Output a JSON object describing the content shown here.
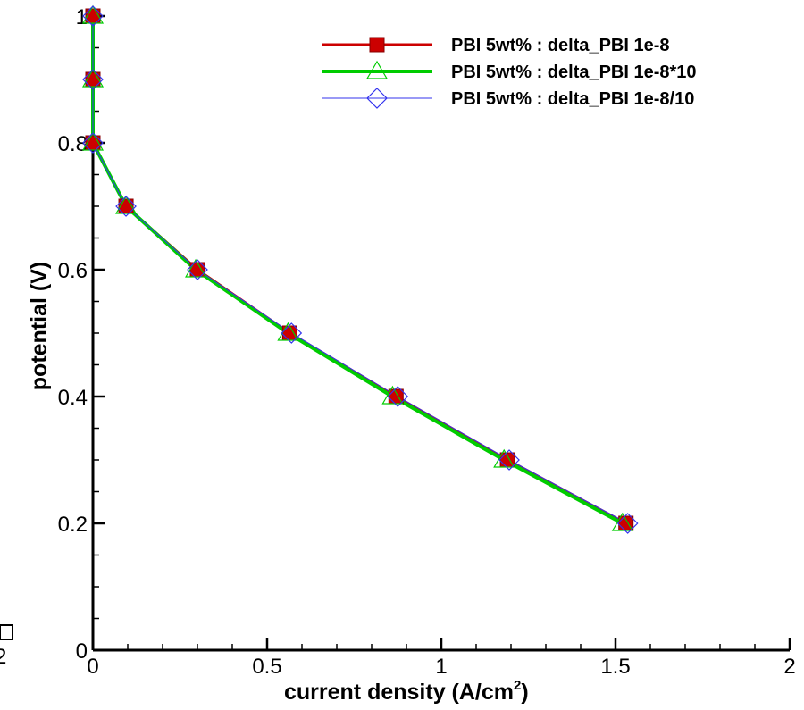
{
  "chart_data": {
    "type": "line",
    "xlabel": "current density (A/cm",
    "xlabel_sup": "2",
    "xlabel_suffix": ")",
    "ylabel": "potential (V)",
    "xlim": [
      0,
      2
    ],
    "ylim": [
      0,
      1
    ],
    "xticks": [
      0,
      0.5,
      1,
      1.5,
      2
    ],
    "xtick_labels": [
      "0",
      "0.5",
      "1",
      "1.5",
      "2"
    ],
    "yticks": [
      0,
      0.2,
      0.4,
      0.6,
      0.8,
      1
    ],
    "ytick_labels": [
      "0",
      "0.2",
      "0.4",
      "0.6",
      "0.8",
      "1"
    ],
    "x_minor_step": 0.1,
    "y_minor_step": 0.05,
    "grid": false,
    "legend_position": "top-right",
    "edge_fragment": "2",
    "series": [
      {
        "name": "PBI 5wt% : delta_PBI 1e-8",
        "color": "#cc0000",
        "marker": "filled-square",
        "line_width": 3,
        "x": [
          0.0,
          0.0,
          0.0,
          0.095,
          0.3,
          0.565,
          0.87,
          1.19,
          1.53
        ],
        "y": [
          1.0,
          0.9,
          0.8,
          0.7,
          0.6,
          0.5,
          0.4,
          0.3,
          0.2
        ]
      },
      {
        "name": "PBI 5wt% : delta_PBI 1e-8*10",
        "color": "#00cc00",
        "marker": "open-triangle",
        "line_width": 4,
        "x": [
          0.0,
          0.0,
          0.0,
          0.095,
          0.295,
          0.56,
          0.86,
          1.18,
          1.52
        ],
        "y": [
          1.0,
          0.9,
          0.8,
          0.7,
          0.6,
          0.5,
          0.4,
          0.3,
          0.2
        ]
      },
      {
        "name": "PBI 5wt% : delta_PBI 1e-8/10",
        "color": "#3333ee",
        "marker": "open-diamond",
        "line_width": 1,
        "x": [
          0.0,
          0.0,
          0.0,
          0.095,
          0.3,
          0.57,
          0.875,
          1.195,
          1.535
        ],
        "y": [
          1.0,
          0.9,
          0.8,
          0.7,
          0.6,
          0.5,
          0.4,
          0.3,
          0.2
        ]
      }
    ]
  }
}
